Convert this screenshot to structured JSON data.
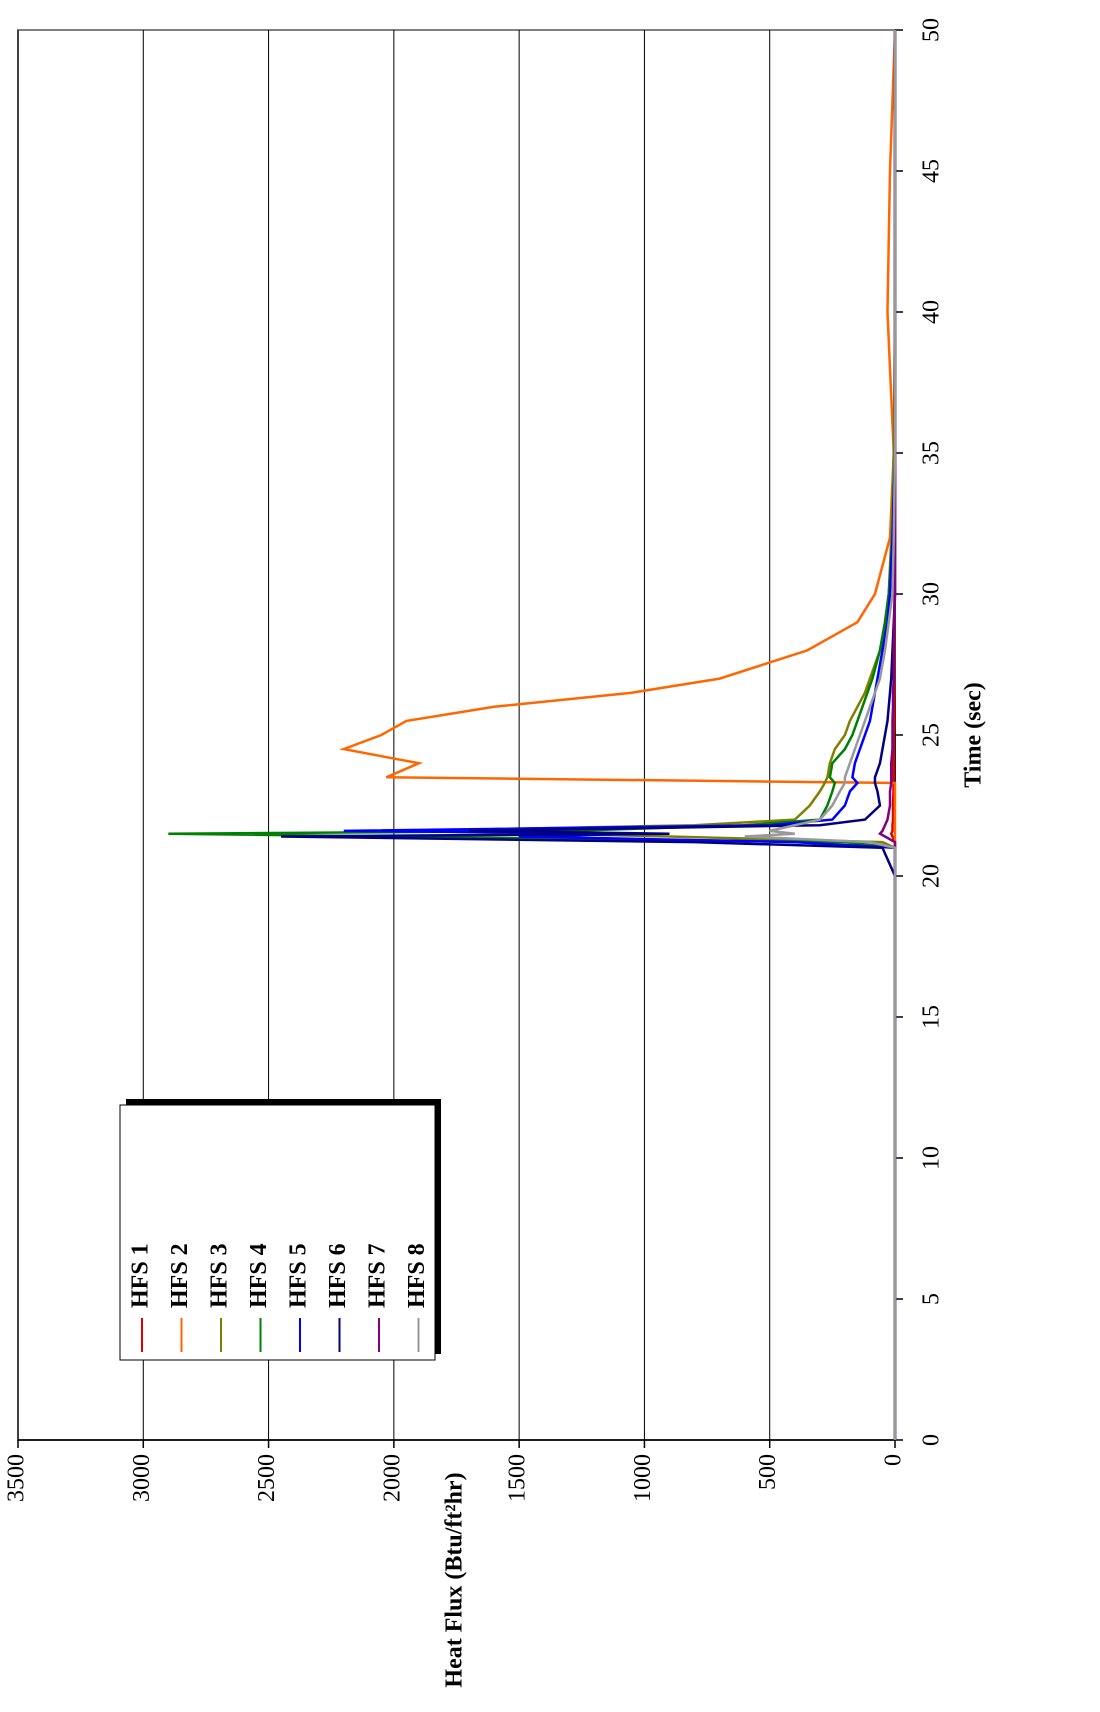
{
  "chart_data": {
    "type": "line",
    "x_label": "Time (sec)",
    "y_label": "Heat Flux (Btu/ft²hr)",
    "x": [
      0,
      20,
      21,
      21.2,
      21.4,
      21.5,
      21.6,
      21.8,
      22,
      22.5,
      23,
      23.3,
      23.5,
      24,
      24.5,
      25,
      25.5,
      26,
      26.5,
      27,
      28,
      29,
      30,
      32,
      35,
      40,
      45,
      50
    ],
    "series": [
      {
        "name": "HFS 1",
        "color": "#e00000",
        "values": [
          0,
          0,
          0,
          0,
          10,
          15,
          10,
          10,
          8,
          8,
          6,
          6,
          5,
          5,
          5,
          5,
          4,
          4,
          3,
          3,
          3,
          2,
          2,
          0,
          0,
          0,
          0,
          0
        ]
      },
      {
        "name": "HFS 2",
        "color": "#ff6600",
        "values": [
          0,
          0,
          0,
          0,
          0,
          0,
          0,
          0,
          0,
          0,
          0,
          0,
          2030,
          1900,
          2200,
          2050,
          1950,
          1600,
          1050,
          700,
          350,
          150,
          80,
          20,
          5,
          30,
          20,
          0
        ]
      },
      {
        "name": "HFS 3",
        "color": "#808000",
        "values": [
          0,
          0,
          0,
          50,
          900,
          1400,
          1950,
          800,
          400,
          340,
          300,
          280,
          270,
          260,
          240,
          200,
          180,
          150,
          120,
          100,
          60,
          40,
          25,
          15,
          5,
          0,
          0,
          0
        ]
      },
      {
        "name": "HFS 4",
        "color": "#008000",
        "values": [
          0,
          0,
          0,
          200,
          2000,
          2900,
          1300,
          600,
          300,
          270,
          250,
          240,
          260,
          250,
          200,
          170,
          150,
          130,
          110,
          90,
          60,
          40,
          25,
          10,
          0,
          0,
          0,
          0
        ]
      },
      {
        "name": "HFS 5",
        "color": "#0000ff",
        "values": [
          0,
          0,
          0,
          400,
          1500,
          1000,
          2200,
          500,
          250,
          200,
          180,
          150,
          170,
          160,
          140,
          120,
          100,
          90,
          80,
          70,
          50,
          30,
          20,
          10,
          0,
          0,
          0,
          0
        ]
      },
      {
        "name": "HFS 6",
        "color": "#000080",
        "values": [
          0,
          0,
          50,
          800,
          2450,
          900,
          1700,
          300,
          120,
          60,
          70,
          80,
          80,
          60,
          50,
          40,
          30,
          25,
          20,
          15,
          10,
          5,
          0,
          0,
          0,
          0,
          0,
          0
        ]
      },
      {
        "name": "HFS 7",
        "color": "#800080",
        "values": [
          0,
          0,
          0,
          0,
          40,
          60,
          50,
          40,
          30,
          20,
          20,
          15,
          15,
          15,
          10,
          10,
          10,
          8,
          8,
          5,
          5,
          3,
          0,
          0,
          0,
          0,
          0,
          0
        ]
      },
      {
        "name": "HFS 8",
        "color": "#999999",
        "values": [
          0,
          0,
          0,
          100,
          600,
          400,
          500,
          400,
          300,
          250,
          220,
          200,
          200,
          180,
          160,
          140,
          120,
          100,
          80,
          60,
          40,
          25,
          10,
          5,
          0,
          0,
          0,
          0
        ]
      }
    ],
    "xlim": [
      0,
      50
    ],
    "xticks": [
      0,
      5,
      10,
      15,
      20,
      25,
      30,
      35,
      40,
      45,
      50
    ],
    "ylim": [
      0,
      3500
    ],
    "yticks": [
      0,
      500,
      1000,
      1500,
      2000,
      2500,
      3000,
      3500
    ],
    "grid": true
  }
}
